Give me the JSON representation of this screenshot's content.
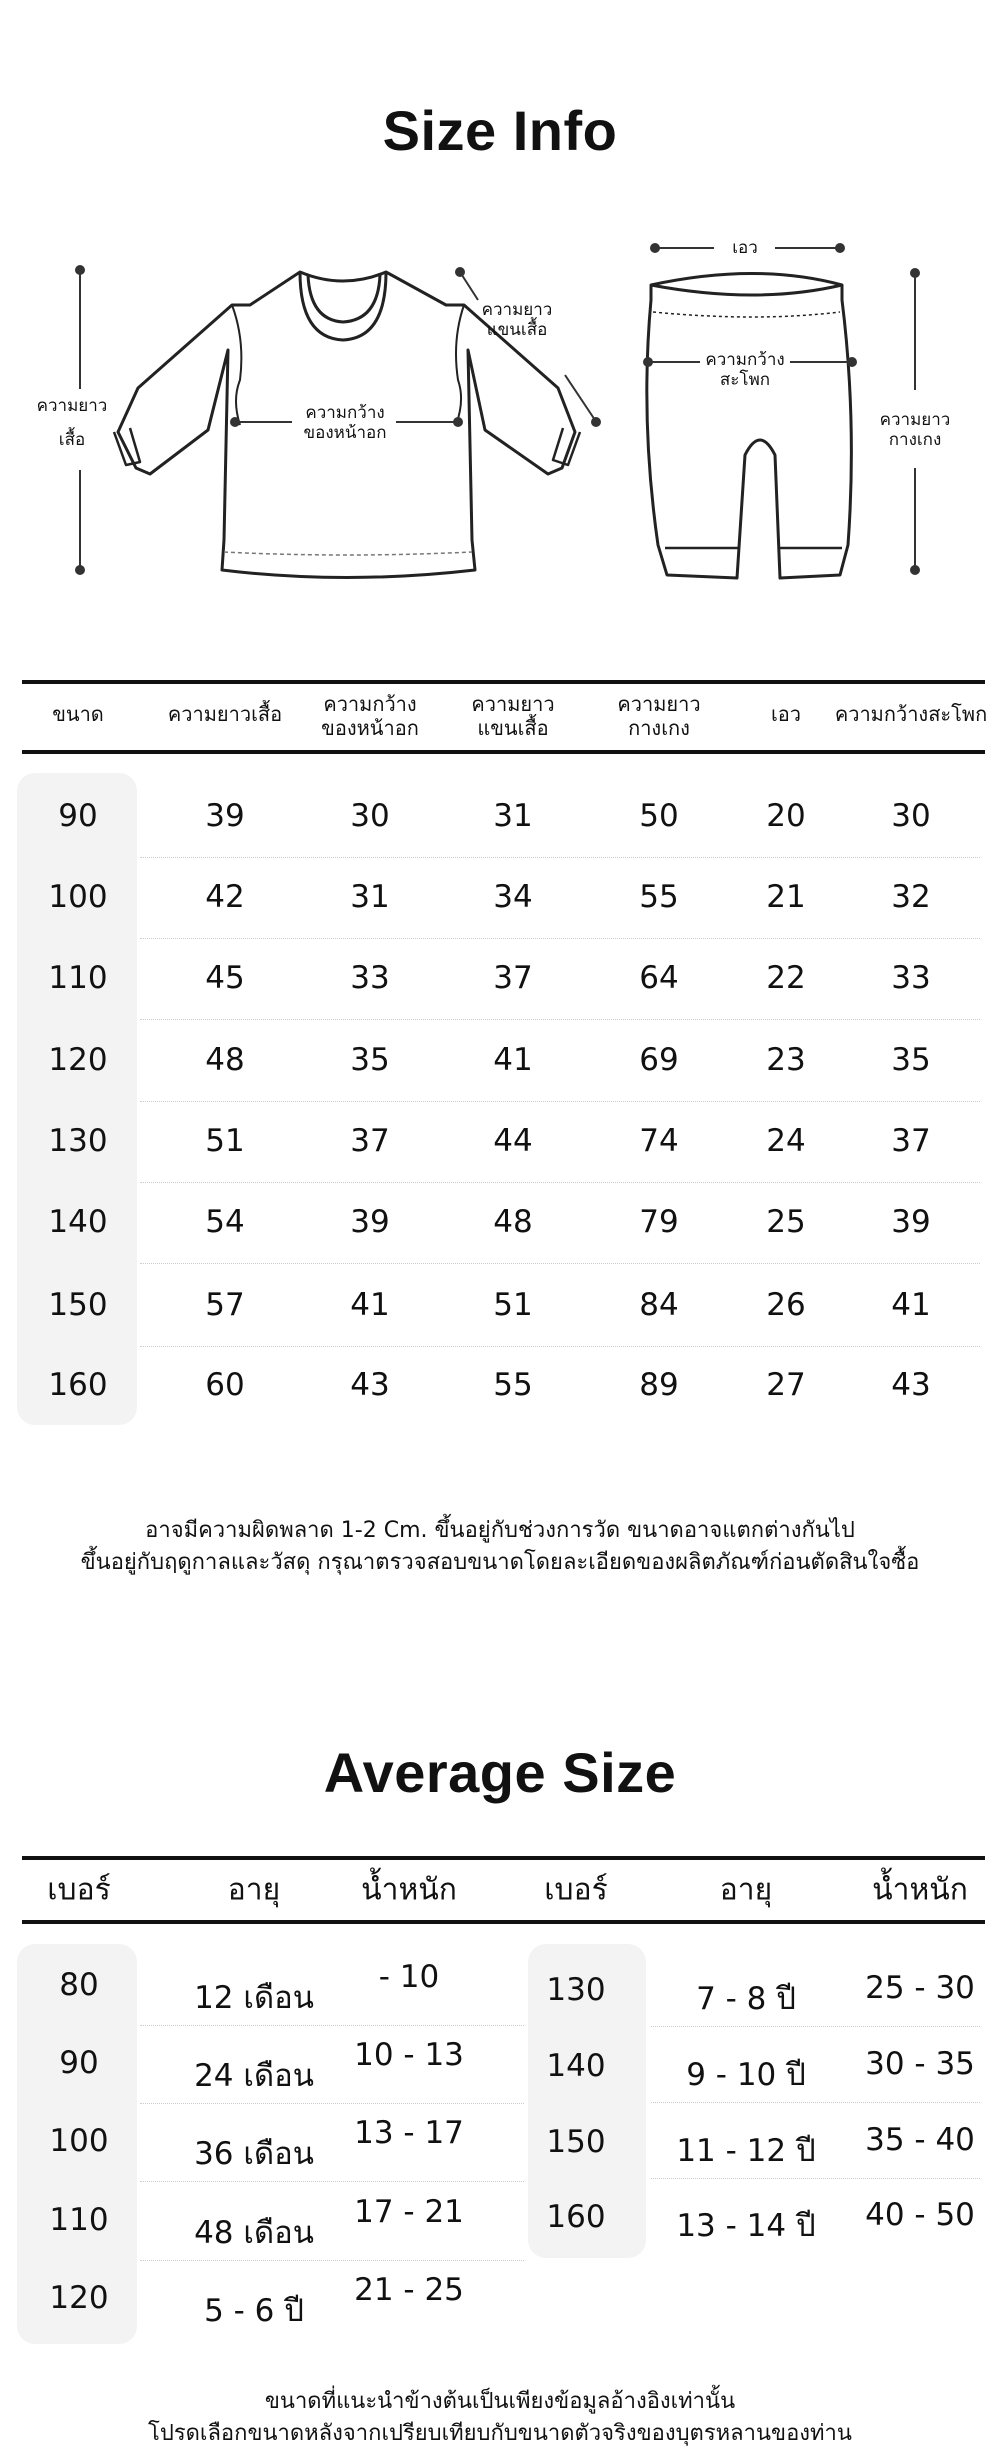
{
  "size_info": {
    "title": "Size Info",
    "diagram": {
      "shirt_length": [
        "ความยาว",
        "เสื้อ"
      ],
      "chest_width": [
        "ความกว้าง",
        "ของหน้าอก"
      ],
      "sleeve_length": [
        "ความยาว",
        "แขนเสื้อ"
      ],
      "waist": "เอว",
      "hip_width": [
        "ความกว้าง",
        "สะโพก"
      ],
      "pants_length": [
        "ความยาว",
        "กางเกง"
      ]
    },
    "headers": [
      [
        "ขนาด"
      ],
      [
        "ความยาวเสื้อ"
      ],
      [
        "ความกว้าง",
        "ของหน้าอก"
      ],
      [
        "ความยาว",
        "แขนเสื้อ"
      ],
      [
        "ความยาว",
        "กางเกง"
      ],
      [
        "เอว"
      ],
      [
        "ความกว้างสะโพก"
      ]
    ],
    "rows": [
      [
        "90",
        "39",
        "30",
        "31",
        "50",
        "20",
        "30"
      ],
      [
        "100",
        "42",
        "31",
        "34",
        "55",
        "21",
        "32"
      ],
      [
        "110",
        "45",
        "33",
        "37",
        "64",
        "22",
        "33"
      ],
      [
        "120",
        "48",
        "35",
        "41",
        "69",
        "23",
        "35"
      ],
      [
        "130",
        "51",
        "37",
        "44",
        "74",
        "24",
        "37"
      ],
      [
        "140",
        "54",
        "39",
        "48",
        "79",
        "25",
        "39"
      ],
      [
        "150",
        "57",
        "41",
        "51",
        "84",
        "26",
        "41"
      ],
      [
        "160",
        "60",
        "43",
        "55",
        "89",
        "27",
        "43"
      ]
    ],
    "note": [
      "อาจมีความผิดพลาด 1-2 Cm. ขึ้นอยู่กับช่วงการวัด ขนาดอาจแตกต่างกันไป",
      "ขึ้นอยู่กับฤดูกาลและวัสดุ กรุณาตรวจสอบขนาดโดยละเอียดของผลิตภัณฑ์ก่อนตัดสินใจซื้อ"
    ]
  },
  "average_size": {
    "title": "Average Size",
    "headers": [
      "เบอร์",
      "อายุ",
      "น้ำหนัก",
      "เบอร์",
      "อายุ",
      "น้ำหนัก"
    ],
    "left_rows": [
      [
        "80",
        "12 เดือน",
        "- 10"
      ],
      [
        "90",
        "24 เดือน",
        "10 - 13"
      ],
      [
        "100",
        "36 เดือน",
        "13 - 17"
      ],
      [
        "110",
        "48 เดือน",
        "17 - 21"
      ],
      [
        "120",
        "5 - 6 ปี",
        "21 - 25"
      ]
    ],
    "right_rows": [
      [
        "130",
        "7 - 8 ปี",
        "25 - 30"
      ],
      [
        "140",
        "9 - 10 ปี",
        "30 - 35"
      ],
      [
        "150",
        "11 - 12 ปี",
        "35 - 40"
      ],
      [
        "160",
        "13 - 14 ปี",
        "40 - 50"
      ]
    ],
    "note": [
      "ขนาดที่แนะนำข้างต้นเป็นเพียงข้อมูลอ้างอิงเท่านั้น",
      "โปรดเลือกขนาดหลังจากเปรียบเทียบกับขนาดตัวจริงของบุตรหลานของท่าน"
    ]
  },
  "colors": {
    "text": "#111111",
    "pill": "#f3f3f3",
    "divider": "#cccccc"
  }
}
